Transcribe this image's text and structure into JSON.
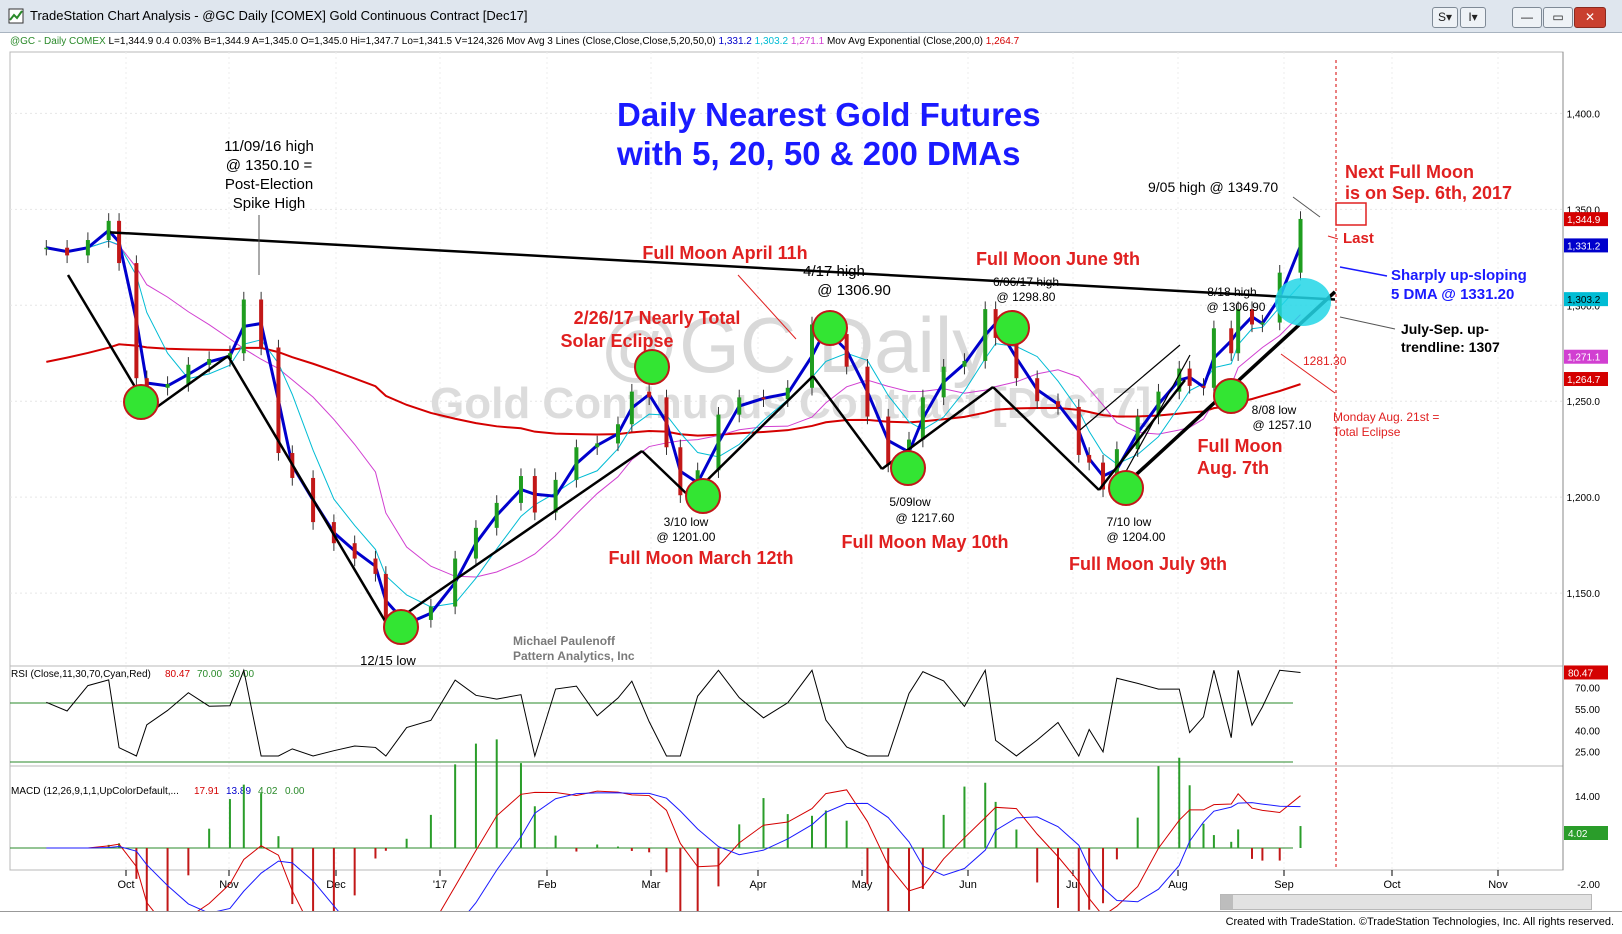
{
  "window": {
    "title": "TradeStation Chart Analysis - @GC Daily [COMEX] Gold Continuous Contract [Dec17]",
    "buttons": [
      "S▾",
      "I▾",
      "—",
      "▭",
      "✕"
    ],
    "footer": "Created with TradeStation. ©TradeStation Technologies, Inc. All rights reserved."
  },
  "info": {
    "symbol": "@GC - Daily  COMEX",
    "quote": "L=1,344.9  0.4  0.03%  B=1,344.9  A=1,345.0  O=1,345.0  Hi=1,347.7  Lo=1,341.5  V=124,326",
    "ma3_label": "Mov Avg 3 Lines (Close,Close,Close,5,20,50,0)",
    "ma3_values": [
      "1,331.2",
      "1,303.2",
      "1,271.1"
    ],
    "ema_label": "Mov Avg Exponential (Close,200,0)",
    "ema_value": "1,264.7",
    "ma_colors": [
      "#0000cc",
      "#00bcd4",
      "#d13fd1",
      "#d40000"
    ]
  },
  "annotations": {
    "main_title": [
      "Daily Nearest Gold Futures",
      "with 5, 20, 50 & 200 DMAs"
    ],
    "watermark1": "@GC Daily",
    "watermark2": "Gold Continuous Contract [Dec17]",
    "author": [
      "Michael Paulenoff",
      "Pattern Analytics, Inc"
    ],
    "nov9": [
      "11/09/16 high",
      "@ 1350.10 =",
      "Post-Election",
      "Spike High"
    ],
    "dec15": "12/15 low",
    "eclipse": [
      "2/26/17 Nearly Total",
      "Solar Eclipse"
    ],
    "mar10": [
      "3/10 low",
      "@ 1201.00"
    ],
    "fm_mar": "Full Moon March 12th",
    "fm_apr": "Full Moon April 11h",
    "apr17": [
      "4/17 high",
      "@ 1306.90"
    ],
    "may09": [
      "5/09low",
      "@ 1217.60"
    ],
    "fm_may": "Full Moon May 10th",
    "fm_jun": "Full Moon June 9th",
    "jun06": [
      "6/06/17 high",
      "@ 1298.80"
    ],
    "jul10": [
      "7/10 low",
      "@ 1204.00"
    ],
    "fm_jul": "Full Moon July 9th",
    "aug18": [
      "8/18 high",
      "@ 1306.90"
    ],
    "aug08": [
      "8/08 low",
      "@ 1257.10"
    ],
    "fm_aug": [
      "Full Moon",
      "Aug. 7th"
    ],
    "p1281": "1281.30",
    "aug21": [
      "Monday Aug. 21st =",
      "Total Eclipse"
    ],
    "sep05": "9/05 high @ 1349.70",
    "next_fm": [
      "Next Full Moon",
      "is on Sep. 6th, 2017"
    ],
    "last": "Last",
    "dma5": [
      "Sharply up-sloping",
      "5 DMA @ 1331.20"
    ],
    "trend": [
      "July-Sep. up-",
      "trendline: 1307"
    ]
  },
  "price_axis": {
    "ticks": [
      "1,400.0",
      "1,350.0",
      "1,300.0",
      "1,250.0",
      "1,200.0",
      "1,150.0"
    ],
    "badges": [
      "1,344.9",
      "1,331.2",
      "1,303.2",
      "1,271.1",
      "1,264.7"
    ],
    "badge_colors": [
      "#d40000",
      "#0000cc",
      "#00bcd4",
      "#d13fd1",
      "#d40000"
    ]
  },
  "rsi": {
    "label": "RSI (Close,11,30,70,Cyan,Red)",
    "values": [
      "80.47",
      "70.00",
      "30.00"
    ],
    "ticks": [
      "70.00",
      "55.00",
      "40.00",
      "25.00"
    ],
    "badge": "80.47"
  },
  "macd": {
    "label": "MACD (12,26,9,1,1,UpColorDefault,...",
    "values": [
      "17.91",
      "13.89",
      "4.02",
      "0.00"
    ],
    "ticks": [
      "14.00",
      "-2.00"
    ],
    "badge": "4.02"
  },
  "time_axis": [
    "Oct",
    "Nov",
    "Dec",
    "'17",
    "Feb",
    "Mar",
    "Apr",
    "May",
    "Jun",
    "Jul",
    "Aug",
    "Sep",
    "Oct",
    "Nov"
  ],
  "chart_data": {
    "type": "line",
    "title": "Daily Nearest Gold Futures with 5, 20, 50 & 200 DMAs",
    "price_range": [
      1112,
      1432
    ],
    "x": [
      "2016-09-08",
      "2016-09-14",
      "2016-09-20",
      "2016-09-26",
      "2016-09-29",
      "2016-10-04",
      "2016-10-07",
      "2016-10-13",
      "2016-10-19",
      "2016-10-25",
      "2016-10-31",
      "2016-11-04",
      "2016-11-09",
      "2016-11-14",
      "2016-11-18",
      "2016-11-24",
      "2016-11-30",
      "2016-12-06",
      "2016-12-12",
      "2016-12-15",
      "2016-12-21",
      "2016-12-28",
      "2017-01-04",
      "2017-01-10",
      "2017-01-16",
      "2017-01-23",
      "2017-01-27",
      "2017-02-02",
      "2017-02-08",
      "2017-02-14",
      "2017-02-20",
      "2017-02-24",
      "2017-03-01",
      "2017-03-06",
      "2017-03-10",
      "2017-03-15",
      "2017-03-21",
      "2017-03-27",
      "2017-04-03",
      "2017-04-10",
      "2017-04-17",
      "2017-04-21",
      "2017-04-27",
      "2017-05-03",
      "2017-05-09",
      "2017-05-15",
      "2017-05-19",
      "2017-05-25",
      "2017-05-31",
      "2017-06-06",
      "2017-06-09",
      "2017-06-15",
      "2017-06-21",
      "2017-06-27",
      "2017-07-03",
      "2017-07-06",
      "2017-07-10",
      "2017-07-14",
      "2017-07-20",
      "2017-07-26",
      "2017-08-01",
      "2017-08-04",
      "2017-08-08",
      "2017-08-11",
      "2017-08-16",
      "2017-08-18",
      "2017-08-22",
      "2017-08-25",
      "2017-08-30",
      "2017-09-05"
    ],
    "series": [
      {
        "name": "Close",
        "values": [
          1330,
          1326,
          1334,
          1344,
          1322,
          1262,
          1257,
          1259,
          1269,
          1272,
          1275,
          1303,
          1278,
          1223,
          1210,
          1187,
          1176,
          1168,
          1160,
          1132,
          1136,
          1143,
          1168,
          1184,
          1197,
          1211,
          1192,
          1209,
          1226,
          1228,
          1238,
          1255,
          1252,
          1226,
          1201,
          1214,
          1243,
          1252,
          1251,
          1257,
          1290,
          1285,
          1268,
          1242,
          1217,
          1230,
          1252,
          1268,
          1271,
          1298,
          1283,
          1262,
          1250,
          1247,
          1222,
          1218,
          1204,
          1225,
          1242,
          1255,
          1267,
          1258,
          1257,
          1288,
          1275,
          1298,
          1290,
          1291,
          1317,
          1345
        ]
      }
    ],
    "moving_averages": [
      "5 DMA",
      "20 DMA",
      "50 DMA",
      "200 EMA"
    ],
    "key_points": [
      {
        "x": "2016-11-09",
        "y": 1350.1
      },
      {
        "x": "2016-12-15",
        "y": 1125.0
      },
      {
        "x": "2017-03-10",
        "y": 1201.0
      },
      {
        "x": "2017-04-17",
        "y": 1306.9
      },
      {
        "x": "2017-05-09",
        "y": 1217.6
      },
      {
        "x": "2017-06-06",
        "y": 1298.8
      },
      {
        "x": "2017-07-10",
        "y": 1204.0
      },
      {
        "x": "2017-08-08",
        "y": 1257.1
      },
      {
        "x": "2017-08-18",
        "y": 1306.9
      },
      {
        "x": "2017-09-05",
        "y": 1349.7
      }
    ],
    "rsi_levels": [
      70,
      30
    ],
    "rsi_last": 80.47
  }
}
